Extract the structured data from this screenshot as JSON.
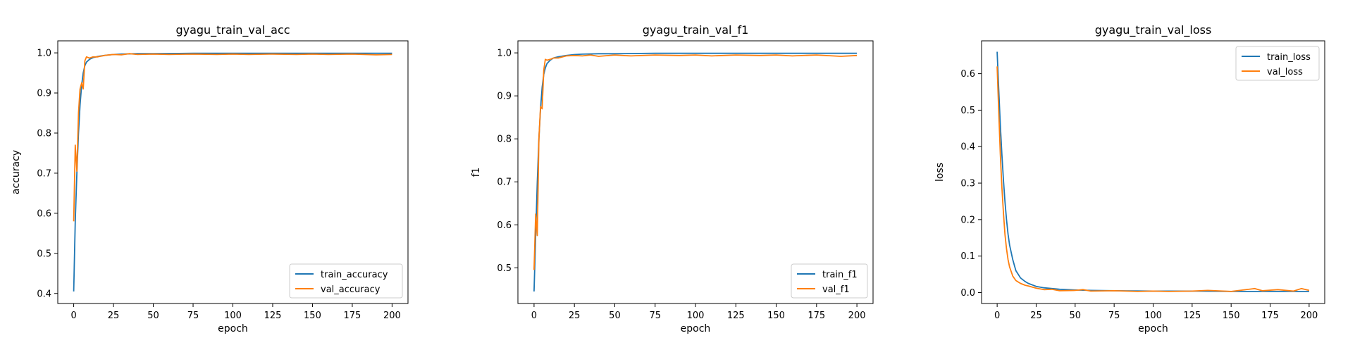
{
  "colors": {
    "train": "#1f77b4",
    "val": "#ff7f0e",
    "axis": "#000000",
    "legend_border": "#cccccc"
  },
  "chart_data": [
    {
      "type": "line",
      "title": "gyagu_train_val_acc",
      "xlabel": "epoch",
      "ylabel": "accuracy",
      "xlim": [
        -10,
        210
      ],
      "ylim": [
        0.375,
        1.03
      ],
      "xticks": [
        0,
        25,
        50,
        75,
        100,
        125,
        150,
        175,
        200
      ],
      "yticks": [
        0.4,
        0.5,
        0.6,
        0.7,
        0.8,
        0.9,
        1.0
      ],
      "ytick_labels": [
        "0.4",
        "0.5",
        "0.6",
        "0.7",
        "0.8",
        "0.9",
        "1.0"
      ],
      "legend_loc": "lower-right",
      "grid": false,
      "series": [
        {
          "name": "train_accuracy",
          "color": "#1f77b4",
          "points": [
            [
              0,
              0.405
            ],
            [
              1,
              0.58
            ],
            [
              2,
              0.7
            ],
            [
              3,
              0.8
            ],
            [
              4,
              0.87
            ],
            [
              5,
              0.92
            ],
            [
              6,
              0.95
            ],
            [
              7,
              0.968
            ],
            [
              8,
              0.977
            ],
            [
              10,
              0.984
            ],
            [
              12,
              0.988
            ],
            [
              15,
              0.991
            ],
            [
              20,
              0.994
            ],
            [
              25,
              0.996
            ],
            [
              30,
              0.997
            ],
            [
              40,
              0.998
            ],
            [
              50,
              0.998
            ],
            [
              75,
              0.999
            ],
            [
              100,
              0.999
            ],
            [
              125,
              0.999
            ],
            [
              150,
              0.999
            ],
            [
              175,
              0.999
            ],
            [
              200,
              0.999
            ]
          ]
        },
        {
          "name": "val_accuracy",
          "color": "#ff7f0e",
          "points": [
            [
              0,
              0.58
            ],
            [
              1,
              0.77
            ],
            [
              2,
              0.705
            ],
            [
              3,
              0.85
            ],
            [
              4,
              0.91
            ],
            [
              5,
              0.925
            ],
            [
              6,
              0.91
            ],
            [
              7,
              0.98
            ],
            [
              8,
              0.99
            ],
            [
              10,
              0.987
            ],
            [
              12,
              0.99
            ],
            [
              15,
              0.99
            ],
            [
              20,
              0.994
            ],
            [
              25,
              0.996
            ],
            [
              30,
              0.995
            ],
            [
              35,
              0.998
            ],
            [
              40,
              0.996
            ],
            [
              50,
              0.997
            ],
            [
              60,
              0.996
            ],
            [
              75,
              0.997
            ],
            [
              90,
              0.996
            ],
            [
              100,
              0.997
            ],
            [
              110,
              0.996
            ],
            [
              125,
              0.997
            ],
            [
              140,
              0.996
            ],
            [
              150,
              0.997
            ],
            [
              160,
              0.996
            ],
            [
              175,
              0.997
            ],
            [
              190,
              0.995
            ],
            [
              200,
              0.996
            ]
          ]
        }
      ]
    },
    {
      "type": "line",
      "title": "gyagu_train_val_f1",
      "xlabel": "epoch",
      "ylabel": "f1",
      "xlim": [
        -10,
        210
      ],
      "ylim": [
        0.417,
        1.028
      ],
      "xticks": [
        0,
        25,
        50,
        75,
        100,
        125,
        150,
        175,
        200
      ],
      "yticks": [
        0.5,
        0.6,
        0.7,
        0.8,
        0.9,
        1.0
      ],
      "ytick_labels": [
        "0.5",
        "0.6",
        "0.7",
        "0.8",
        "0.9",
        "1.0"
      ],
      "legend_loc": "lower-right",
      "grid": false,
      "series": [
        {
          "name": "train_f1",
          "color": "#1f77b4",
          "points": [
            [
              0,
              0.445
            ],
            [
              1,
              0.575
            ],
            [
              2,
              0.7
            ],
            [
              3,
              0.8
            ],
            [
              4,
              0.87
            ],
            [
              5,
              0.92
            ],
            [
              6,
              0.95
            ],
            [
              7,
              0.965
            ],
            [
              8,
              0.975
            ],
            [
              10,
              0.983
            ],
            [
              12,
              0.988
            ],
            [
              15,
              0.991
            ],
            [
              20,
              0.994
            ],
            [
              25,
              0.996
            ],
            [
              30,
              0.997
            ],
            [
              40,
              0.998
            ],
            [
              50,
              0.998
            ],
            [
              75,
              0.999
            ],
            [
              100,
              0.999
            ],
            [
              125,
              0.999
            ],
            [
              150,
              0.999
            ],
            [
              175,
              0.999
            ],
            [
              200,
              0.999
            ]
          ]
        },
        {
          "name": "val_f1",
          "color": "#ff7f0e",
          "points": [
            [
              0,
              0.495
            ],
            [
              1,
              0.625
            ],
            [
              2,
              0.575
            ],
            [
              3,
              0.8
            ],
            [
              4,
              0.875
            ],
            [
              5,
              0.87
            ],
            [
              6,
              0.96
            ],
            [
              7,
              0.985
            ],
            [
              8,
              0.983
            ],
            [
              10,
              0.985
            ],
            [
              12,
              0.988
            ],
            [
              15,
              0.988
            ],
            [
              20,
              0.993
            ],
            [
              25,
              0.994
            ],
            [
              30,
              0.993
            ],
            [
              35,
              0.995
            ],
            [
              40,
              0.992
            ],
            [
              50,
              0.995
            ],
            [
              60,
              0.993
            ],
            [
              75,
              0.995
            ],
            [
              90,
              0.994
            ],
            [
              100,
              0.995
            ],
            [
              110,
              0.993
            ],
            [
              125,
              0.995
            ],
            [
              140,
              0.994
            ],
            [
              150,
              0.995
            ],
            [
              160,
              0.993
            ],
            [
              175,
              0.995
            ],
            [
              190,
              0.992
            ],
            [
              200,
              0.994
            ]
          ]
        }
      ]
    },
    {
      "type": "line",
      "title": "gyagu_train_val_loss",
      "xlabel": "epoch",
      "ylabel": "loss",
      "xlim": [
        -10,
        210
      ],
      "ylim": [
        -0.03,
        0.69
      ],
      "xticks": [
        0,
        25,
        50,
        75,
        100,
        125,
        150,
        175,
        200
      ],
      "yticks": [
        0.0,
        0.1,
        0.2,
        0.3,
        0.4,
        0.5,
        0.6
      ],
      "ytick_labels": [
        "0.0",
        "0.1",
        "0.2",
        "0.3",
        "0.4",
        "0.5",
        "0.6"
      ],
      "legend_loc": "upper-right",
      "grid": false,
      "series": [
        {
          "name": "train_loss",
          "color": "#1f77b4",
          "points": [
            [
              0,
              0.66
            ],
            [
              1,
              0.56
            ],
            [
              2,
              0.46
            ],
            [
              3,
              0.38
            ],
            [
              4,
              0.31
            ],
            [
              5,
              0.25
            ],
            [
              6,
              0.2
            ],
            [
              7,
              0.16
            ],
            [
              8,
              0.13
            ],
            [
              10,
              0.09
            ],
            [
              12,
              0.06
            ],
            [
              15,
              0.04
            ],
            [
              18,
              0.03
            ],
            [
              20,
              0.025
            ],
            [
              25,
              0.017
            ],
            [
              30,
              0.013
            ],
            [
              40,
              0.009
            ],
            [
              50,
              0.007
            ],
            [
              60,
              0.006
            ],
            [
              75,
              0.005
            ],
            [
              100,
              0.004
            ],
            [
              125,
              0.004
            ],
            [
              150,
              0.003
            ],
            [
              175,
              0.003
            ],
            [
              200,
              0.003
            ]
          ]
        },
        {
          "name": "val_loss",
          "color": "#ff7f0e",
          "points": [
            [
              0,
              0.62
            ],
            [
              1,
              0.5
            ],
            [
              2,
              0.38
            ],
            [
              3,
              0.29
            ],
            [
              4,
              0.22
            ],
            [
              5,
              0.16
            ],
            [
              6,
              0.12
            ],
            [
              7,
              0.09
            ],
            [
              8,
              0.07
            ],
            [
              10,
              0.045
            ],
            [
              12,
              0.033
            ],
            [
              15,
              0.025
            ],
            [
              18,
              0.02
            ],
            [
              20,
              0.018
            ],
            [
              25,
              0.012
            ],
            [
              30,
              0.008
            ],
            [
              35,
              0.009
            ],
            [
              40,
              0.005
            ],
            [
              50,
              0.006
            ],
            [
              55,
              0.008
            ],
            [
              60,
              0.004
            ],
            [
              75,
              0.005
            ],
            [
              90,
              0.003
            ],
            [
              100,
              0.004
            ],
            [
              110,
              0.003
            ],
            [
              125,
              0.004
            ],
            [
              135,
              0.006
            ],
            [
              150,
              0.003
            ],
            [
              165,
              0.011
            ],
            [
              170,
              0.005
            ],
            [
              180,
              0.008
            ],
            [
              190,
              0.004
            ],
            [
              195,
              0.011
            ],
            [
              200,
              0.006
            ]
          ]
        }
      ]
    }
  ]
}
